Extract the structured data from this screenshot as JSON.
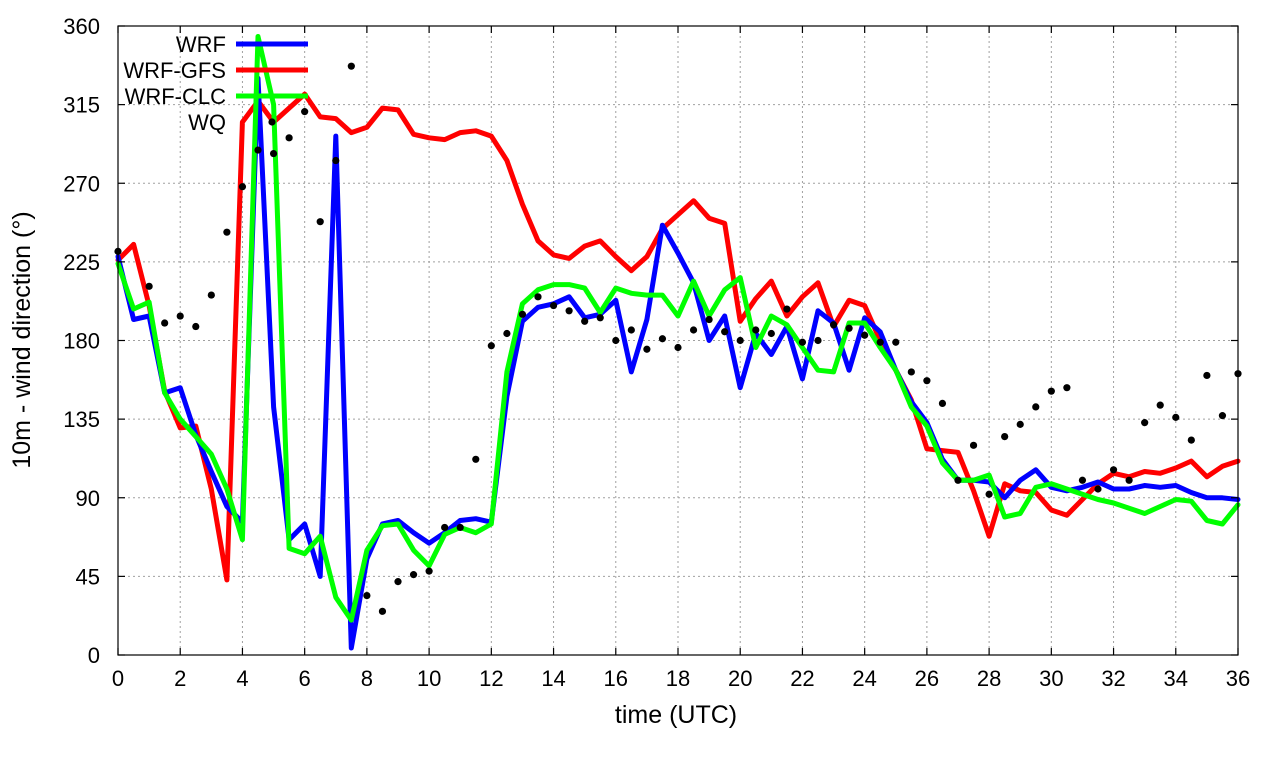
{
  "chart_data": {
    "type": "line",
    "xlabel": "time (UTC)",
    "ylabel": "10m - wind direction (°)",
    "xlim": [
      0,
      36
    ],
    "ylim": [
      0,
      360
    ],
    "xticks": [
      0,
      2,
      4,
      6,
      8,
      10,
      12,
      14,
      16,
      18,
      20,
      22,
      24,
      26,
      28,
      30,
      32,
      34,
      36
    ],
    "yticks": [
      0,
      45,
      90,
      135,
      180,
      225,
      270,
      315,
      360
    ],
    "grid": true,
    "legend_position": "top-left",
    "series": [
      {
        "name": "WRF",
        "style": "line",
        "color": "#0000ff",
        "points": [
          [
            0,
            228
          ],
          [
            0.5,
            192
          ],
          [
            1,
            194
          ],
          [
            1.5,
            150
          ],
          [
            2,
            153
          ],
          [
            2.5,
            126
          ],
          [
            3,
            105
          ],
          [
            3.5,
            85
          ],
          [
            4,
            76
          ],
          [
            4.5,
            330
          ],
          [
            5,
            142
          ],
          [
            5.5,
            66
          ],
          [
            6,
            75
          ],
          [
            6.5,
            45
          ],
          [
            7,
            297
          ],
          [
            7.5,
            4
          ],
          [
            8,
            55
          ],
          [
            8.5,
            75
          ],
          [
            9,
            77
          ],
          [
            9.5,
            70
          ],
          [
            10,
            64
          ],
          [
            10.5,
            70
          ],
          [
            11,
            77
          ],
          [
            11.5,
            78
          ],
          [
            12,
            76
          ],
          [
            12.5,
            148
          ],
          [
            13,
            191
          ],
          [
            13.5,
            199
          ],
          [
            14,
            201
          ],
          [
            14.5,
            205
          ],
          [
            15,
            193
          ],
          [
            15.5,
            195
          ],
          [
            16,
            203
          ],
          [
            16.5,
            162
          ],
          [
            17,
            192
          ],
          [
            17.5,
            246
          ],
          [
            18,
            230
          ],
          [
            18.5,
            213
          ],
          [
            19,
            180
          ],
          [
            19.5,
            194
          ],
          [
            20,
            153
          ],
          [
            20.5,
            184
          ],
          [
            21,
            172
          ],
          [
            21.5,
            188
          ],
          [
            22,
            158
          ],
          [
            22.5,
            197
          ],
          [
            23,
            190
          ],
          [
            23.5,
            163
          ],
          [
            24,
            193
          ],
          [
            24.5,
            185
          ],
          [
            25,
            163
          ],
          [
            25.5,
            145
          ],
          [
            26,
            133
          ],
          [
            26.5,
            112
          ],
          [
            27,
            100
          ],
          [
            27.5,
            100
          ],
          [
            28,
            99
          ],
          [
            28.5,
            90
          ],
          [
            29,
            100
          ],
          [
            29.5,
            106
          ],
          [
            30,
            96
          ],
          [
            30.5,
            94
          ],
          [
            31,
            96
          ],
          [
            31.5,
            99
          ],
          [
            32,
            95
          ],
          [
            32.5,
            95
          ],
          [
            33,
            97
          ],
          [
            33.5,
            96
          ],
          [
            34,
            97
          ],
          [
            34.5,
            93
          ],
          [
            35,
            90
          ],
          [
            35.5,
            90
          ],
          [
            36,
            89
          ]
        ]
      },
      {
        "name": "WRF-GFS",
        "style": "line",
        "color": "#ff0000",
        "points": [
          [
            0,
            226
          ],
          [
            0.5,
            235
          ],
          [
            1,
            200
          ],
          [
            1.5,
            151
          ],
          [
            2,
            130
          ],
          [
            2.5,
            131
          ],
          [
            3,
            95
          ],
          [
            3.5,
            43
          ],
          [
            4,
            305
          ],
          [
            4.5,
            317
          ],
          [
            5,
            305
          ],
          [
            5.5,
            313
          ],
          [
            6,
            321
          ],
          [
            6.5,
            308
          ],
          [
            7,
            307
          ],
          [
            7.5,
            299
          ],
          [
            8,
            302
          ],
          [
            8.5,
            313
          ],
          [
            9,
            312
          ],
          [
            9.5,
            298
          ],
          [
            10,
            296
          ],
          [
            10.5,
            295
          ],
          [
            11,
            299
          ],
          [
            11.5,
            300
          ],
          [
            12,
            297
          ],
          [
            12.5,
            283
          ],
          [
            13,
            258
          ],
          [
            13.5,
            237
          ],
          [
            14,
            229
          ],
          [
            14.5,
            227
          ],
          [
            15,
            234
          ],
          [
            15.5,
            237
          ],
          [
            16,
            228
          ],
          [
            16.5,
            220
          ],
          [
            17,
            228
          ],
          [
            17.5,
            244
          ],
          [
            18,
            252
          ],
          [
            18.5,
            260
          ],
          [
            19,
            250
          ],
          [
            19.5,
            247
          ],
          [
            20,
            191
          ],
          [
            20.5,
            204
          ],
          [
            21,
            214
          ],
          [
            21.5,
            194
          ],
          [
            22,
            205
          ],
          [
            22.5,
            213
          ],
          [
            23,
            188
          ],
          [
            23.5,
            203
          ],
          [
            24,
            200
          ],
          [
            24.5,
            180
          ],
          [
            25,
            163
          ],
          [
            25.5,
            146
          ],
          [
            26,
            118
          ],
          [
            26.5,
            117
          ],
          [
            27,
            116
          ],
          [
            27.5,
            94
          ],
          [
            28,
            68
          ],
          [
            28.5,
            98
          ],
          [
            29,
            94
          ],
          [
            29.5,
            93
          ],
          [
            30,
            83
          ],
          [
            30.5,
            80
          ],
          [
            31,
            89
          ],
          [
            31.5,
            98
          ],
          [
            32,
            104
          ],
          [
            32.5,
            102
          ],
          [
            33,
            105
          ],
          [
            33.5,
            104
          ],
          [
            34,
            107
          ],
          [
            34.5,
            111
          ],
          [
            35,
            102
          ],
          [
            35.5,
            108
          ],
          [
            36,
            111
          ]
        ]
      },
      {
        "name": "WRF-CLC",
        "style": "line",
        "color": "#00ff00",
        "points": [
          [
            0,
            224
          ],
          [
            0.5,
            198
          ],
          [
            1,
            202
          ],
          [
            1.5,
            150
          ],
          [
            2,
            135
          ],
          [
            2.5,
            125
          ],
          [
            3,
            115
          ],
          [
            3.5,
            95
          ],
          [
            4,
            66
          ],
          [
            4.5,
            354
          ],
          [
            5,
            315
          ],
          [
            5.5,
            61
          ],
          [
            6,
            58
          ],
          [
            6.5,
            68
          ],
          [
            7,
            33
          ],
          [
            7.5,
            20
          ],
          [
            8,
            60
          ],
          [
            8.5,
            74
          ],
          [
            9,
            75
          ],
          [
            9.5,
            60
          ],
          [
            10,
            51
          ],
          [
            10.5,
            69
          ],
          [
            11,
            73
          ],
          [
            11.5,
            70
          ],
          [
            12,
            75
          ],
          [
            12.5,
            162
          ],
          [
            13,
            201
          ],
          [
            13.5,
            209
          ],
          [
            14,
            212
          ],
          [
            14.5,
            212
          ],
          [
            15,
            210
          ],
          [
            15.5,
            196
          ],
          [
            16,
            210
          ],
          [
            16.5,
            207
          ],
          [
            17,
            206
          ],
          [
            17.5,
            206
          ],
          [
            18,
            194
          ],
          [
            18.5,
            214
          ],
          [
            19,
            194
          ],
          [
            19.5,
            209
          ],
          [
            20,
            216
          ],
          [
            20.5,
            176
          ],
          [
            21,
            194
          ],
          [
            21.5,
            189
          ],
          [
            22,
            176
          ],
          [
            22.5,
            163
          ],
          [
            23,
            162
          ],
          [
            23.5,
            190
          ],
          [
            24,
            190
          ],
          [
            24.5,
            176
          ],
          [
            25,
            163
          ],
          [
            25.5,
            142
          ],
          [
            26,
            131
          ],
          [
            26.5,
            110
          ],
          [
            27,
            100
          ],
          [
            27.5,
            100
          ],
          [
            28,
            103
          ],
          [
            28.5,
            79
          ],
          [
            29,
            81
          ],
          [
            29.5,
            96
          ],
          [
            30,
            98
          ],
          [
            30.5,
            95
          ],
          [
            31,
            92
          ],
          [
            31.5,
            89
          ],
          [
            32,
            87
          ],
          [
            32.5,
            84
          ],
          [
            33,
            81
          ],
          [
            33.5,
            85
          ],
          [
            34,
            89
          ],
          [
            34.5,
            88
          ],
          [
            35,
            77
          ],
          [
            35.5,
            75
          ],
          [
            36,
            86
          ]
        ]
      },
      {
        "name": "WQ",
        "style": "points",
        "color": "#000000",
        "points": [
          [
            0,
            231
          ],
          [
            1,
            211
          ],
          [
            1.5,
            190
          ],
          [
            2,
            194
          ],
          [
            2.5,
            188
          ],
          [
            3,
            206
          ],
          [
            3.5,
            242
          ],
          [
            4,
            268
          ],
          [
            4.5,
            289
          ],
          [
            5,
            287
          ],
          [
            5.5,
            296
          ],
          [
            6,
            311
          ],
          [
            6.5,
            248
          ],
          [
            7,
            283
          ],
          [
            7.5,
            337
          ],
          [
            8,
            34
          ],
          [
            8.5,
            25
          ],
          [
            9,
            42
          ],
          [
            9.5,
            46
          ],
          [
            10,
            48
          ],
          [
            10.5,
            73
          ],
          [
            11,
            73
          ],
          [
            11.5,
            112
          ],
          [
            12,
            177
          ],
          [
            12.5,
            184
          ],
          [
            13,
            195
          ],
          [
            13.5,
            205
          ],
          [
            14,
            200
          ],
          [
            14.5,
            197
          ],
          [
            15,
            191
          ],
          [
            15.5,
            193
          ],
          [
            16,
            180
          ],
          [
            16.5,
            186
          ],
          [
            17,
            175
          ],
          [
            17.5,
            181
          ],
          [
            18,
            176
          ],
          [
            18.5,
            186
          ],
          [
            19,
            192
          ],
          [
            19.5,
            185
          ],
          [
            20,
            180
          ],
          [
            20.5,
            186
          ],
          [
            21,
            184
          ],
          [
            21.5,
            198
          ],
          [
            22,
            179
          ],
          [
            22.5,
            180
          ],
          [
            23,
            189
          ],
          [
            23.5,
            187
          ],
          [
            24,
            183
          ],
          [
            24.5,
            179
          ],
          [
            25,
            179
          ],
          [
            25.5,
            162
          ],
          [
            26,
            157
          ],
          [
            26.5,
            144
          ],
          [
            27,
            100
          ],
          [
            27.5,
            120
          ],
          [
            28,
            92
          ],
          [
            28.5,
            125
          ],
          [
            29,
            132
          ],
          [
            29.5,
            142
          ],
          [
            30,
            151
          ],
          [
            30.5,
            153
          ],
          [
            31,
            100
          ],
          [
            31.5,
            95
          ],
          [
            32,
            106
          ],
          [
            32.5,
            100
          ],
          [
            33,
            133
          ],
          [
            33.5,
            143
          ],
          [
            34,
            136
          ],
          [
            34.5,
            123
          ],
          [
            35,
            160
          ],
          [
            35.5,
            137
          ],
          [
            36,
            161
          ]
        ]
      }
    ]
  }
}
